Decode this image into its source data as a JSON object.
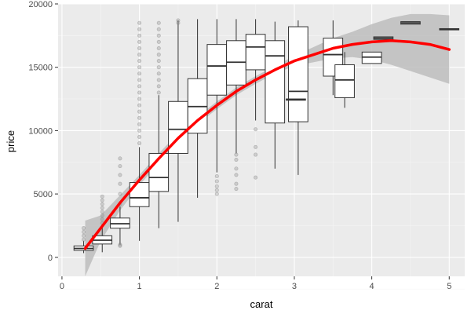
{
  "chart_data": {
    "type": "box",
    "xlabel": "carat",
    "ylabel": "price",
    "xlim": [
      -0.05,
      5.2
    ],
    "ylim": [
      -1500,
      20000
    ],
    "x_ticks": [
      0,
      1,
      2,
      3,
      4,
      5
    ],
    "x_tick_labels": [
      "0",
      "1",
      "2",
      "3",
      "4",
      "5"
    ],
    "y_ticks": [
      0,
      5000,
      10000,
      15000,
      20000
    ],
    "y_tick_labels": [
      "0",
      "5000",
      "10000",
      "15000",
      "20000"
    ],
    "grid": true,
    "boxplot": {
      "group_width": 0.25,
      "boxes": [
        {
          "x": 0.28,
          "q1": 550,
          "median": 700,
          "q3": 900,
          "lower": 330,
          "upper": 1300
        },
        {
          "x": 0.52,
          "q1": 1050,
          "median": 1350,
          "q3": 1700,
          "lower": 400,
          "upper": 2600
        },
        {
          "x": 0.75,
          "q1": 2300,
          "median": 2650,
          "q3": 3100,
          "lower": 1000,
          "upper": 4000
        },
        {
          "x": 1.0,
          "q1": 4000,
          "median": 4700,
          "q3": 5900,
          "lower": 1300,
          "upper": 8700
        },
        {
          "x": 1.25,
          "q1": 5200,
          "median": 6300,
          "q3": 8200,
          "lower": 2300,
          "upper": 12800
        },
        {
          "x": 1.5,
          "q1": 8200,
          "median": 10100,
          "q3": 12300,
          "lower": 2800,
          "upper": 18700
        },
        {
          "x": 1.75,
          "q1": 9800,
          "median": 11900,
          "q3": 14100,
          "lower": 4700,
          "upper": 18800
        },
        {
          "x": 2.0,
          "q1": 12800,
          "median": 15100,
          "q3": 16800,
          "lower": 6700,
          "upper": 18800
        },
        {
          "x": 2.25,
          "q1": 13600,
          "median": 15400,
          "q3": 17100,
          "lower": 8200,
          "upper": 18800
        },
        {
          "x": 2.5,
          "q1": 14800,
          "median": 16600,
          "q3": 17600,
          "lower": 10800,
          "upper": 18800
        },
        {
          "x": 2.75,
          "q1": 10600,
          "median": 15900,
          "q3": 17100,
          "lower": 7000,
          "upper": 18600
        },
        {
          "x": 3.05,
          "q1": 10700,
          "median": 13100,
          "q3": 18200,
          "lower": 6500,
          "upper": 18700
        },
        {
          "x": 3.5,
          "q1": 14300,
          "median": 16000,
          "q3": 17300,
          "lower": 12800,
          "upper": 18700
        },
        {
          "x": 3.65,
          "q1": 12600,
          "median": 14000,
          "q3": 15200,
          "lower": 11800,
          "upper": 16200
        },
        {
          "x": 3.02,
          "q1": 12400,
          "median": 12450,
          "q3": 12500,
          "lower": 12400,
          "upper": 12500
        },
        {
          "x": 4.0,
          "q1": 15300,
          "median": 15800,
          "q3": 16200,
          "lower": 15300,
          "upper": 16200
        },
        {
          "x": 4.15,
          "q1": 17200,
          "median": 17300,
          "q3": 17400,
          "lower": 17200,
          "upper": 17400
        },
        {
          "x": 4.5,
          "q1": 18400,
          "median": 18500,
          "q3": 18600,
          "lower": 18400,
          "upper": 18600
        },
        {
          "x": 5.0,
          "q1": 17950,
          "median": 18000,
          "q3": 18050,
          "lower": 17950,
          "upper": 18050
        }
      ],
      "outliers": [
        {
          "x": 0.28,
          "y": [
            1400,
            1700,
            2000,
            2300
          ]
        },
        {
          "x": 0.52,
          "y": [
            2700,
            3000,
            3300,
            3600,
            3900,
            4200,
            4500,
            4800
          ]
        },
        {
          "x": 0.75,
          "y": [
            900,
            1000,
            4200,
            5000,
            5800,
            6500,
            7200,
            7800
          ]
        },
        {
          "x": 1.0,
          "y": [
            9000,
            9500,
            10000,
            10500,
            11000,
            11500,
            12000,
            12500,
            13000,
            13500,
            14000,
            14500,
            15000,
            15500,
            16000,
            16500,
            17000,
            17500,
            18000,
            18500
          ]
        },
        {
          "x": 1.25,
          "y": [
            13000,
            13500,
            14000,
            14500,
            15000,
            15500,
            16000,
            16500,
            17000,
            17500,
            18000,
            18500
          ]
        },
        {
          "x": 1.5,
          "y": [
            18500,
            18700
          ]
        },
        {
          "x": 2.0,
          "y": [
            5000,
            5300,
            5600,
            6000,
            6400
          ]
        },
        {
          "x": 2.25,
          "y": [
            5400,
            5800,
            6500,
            7000,
            7700,
            8100
          ]
        },
        {
          "x": 2.5,
          "y": [
            6300,
            8100,
            8700,
            10100
          ]
        }
      ]
    },
    "smooth": {
      "name": "",
      "color": "#ff0000",
      "x": [
        0.3,
        0.5,
        0.75,
        1.0,
        1.25,
        1.5,
        1.75,
        2.0,
        2.25,
        2.5,
        2.75,
        3.0,
        3.25,
        3.5,
        3.75,
        4.0,
        4.25,
        4.5,
        4.75,
        5.0
      ],
      "y": [
        700,
        2300,
        4300,
        6100,
        7800,
        9400,
        10800,
        12000,
        13100,
        14000,
        14800,
        15500,
        16000,
        16500,
        16800,
        17000,
        17100,
        17000,
        16800,
        16400
      ],
      "ci_low": [
        -1500,
        1300,
        3700,
        5700,
        7400,
        9000,
        10500,
        11700,
        12800,
        13700,
        14500,
        15100,
        15400,
        15700,
        15800,
        15600,
        15200,
        14700,
        14200,
        13700
      ],
      "ci_high": [
        2900,
        3300,
        4900,
        6500,
        8200,
        9800,
        11100,
        12300,
        13400,
        14300,
        15100,
        15900,
        16600,
        17300,
        17800,
        18400,
        18900,
        19200,
        19200,
        19100
      ]
    },
    "colors": {
      "panel_background": "#ebebeb",
      "grid_major": "#ffffff",
      "grid_minor": "#f5f5f5",
      "ribbon": "#bdbdbd",
      "box_fill": "#ffffff",
      "box_line": "#333333",
      "outlier": "#808080"
    }
  }
}
